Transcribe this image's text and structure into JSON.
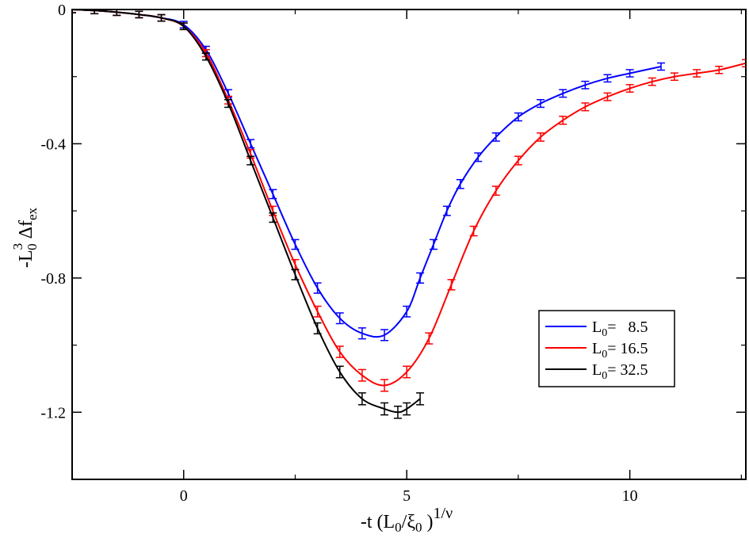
{
  "chart_data": {
    "type": "line",
    "title": "",
    "xlabel": {
      "main": "-t (L",
      "sub1": "0",
      "mid": "/ξ",
      "sub2": "0",
      "close": " )",
      "sup": "1/ν"
    },
    "ylabel": {
      "main": "-L",
      "sup": "3",
      "sub": "0",
      "rest": " Δf",
      "sub2": "ex"
    },
    "xlim": [
      -2.5,
      12.6
    ],
    "ylim": [
      -1.4,
      0.0
    ],
    "x_ticks": [
      0,
      5,
      10
    ],
    "x_tick_labels": [
      "0",
      "5",
      "10"
    ],
    "y_ticks": [
      0,
      -0.4,
      -0.8,
      -1.2
    ],
    "y_tick_labels": [
      "0",
      "-0.4",
      "-0.8",
      "-1.2"
    ],
    "legend_position": "right",
    "series": [
      {
        "name": "8.5",
        "legend_prefix": "L",
        "legend_sub": "0",
        "legend_text": "=   8.5",
        "color": "#0000ff",
        "x": [
          -2.5,
          -2.0,
          -1.5,
          -1.0,
          -0.5,
          0.0,
          0.5,
          1.0,
          1.5,
          2.0,
          2.5,
          3.0,
          3.5,
          4.0,
          4.5,
          5.0,
          5.3,
          5.6,
          5.9,
          6.2,
          6.6,
          7.0,
          7.5,
          8.0,
          8.5,
          9.0,
          9.5,
          10.0,
          10.7
        ],
        "y": [
          0.0,
          -0.003,
          -0.008,
          -0.015,
          -0.025,
          -0.045,
          -0.12,
          -0.25,
          -0.4,
          -0.55,
          -0.7,
          -0.83,
          -0.92,
          -0.965,
          -0.97,
          -0.9,
          -0.8,
          -0.7,
          -0.6,
          -0.52,
          -0.44,
          -0.38,
          -0.32,
          -0.28,
          -0.25,
          -0.225,
          -0.205,
          -0.19,
          -0.17
        ]
      },
      {
        "name": "16.5",
        "legend_prefix": "L",
        "legend_sub": "0",
        "legend_text": "= 16.5",
        "color": "#ff0000",
        "x": [
          -2.5,
          -2.0,
          -1.5,
          -1.0,
          -0.5,
          0.0,
          0.5,
          1.0,
          1.5,
          2.0,
          2.5,
          3.0,
          3.5,
          4.0,
          4.5,
          5.0,
          5.5,
          6.0,
          6.5,
          7.0,
          7.5,
          8.0,
          8.5,
          9.0,
          9.5,
          10.0,
          10.5,
          11.0,
          11.5,
          12.0,
          12.6
        ],
        "y": [
          0.0,
          -0.003,
          -0.008,
          -0.015,
          -0.025,
          -0.05,
          -0.13,
          -0.27,
          -0.43,
          -0.6,
          -0.76,
          -0.9,
          -1.02,
          -1.09,
          -1.12,
          -1.08,
          -0.98,
          -0.82,
          -0.66,
          -0.54,
          -0.45,
          -0.38,
          -0.33,
          -0.29,
          -0.26,
          -0.235,
          -0.215,
          -0.2,
          -0.19,
          -0.18,
          -0.16
        ]
      },
      {
        "name": "32.5",
        "legend_prefix": "L",
        "legend_sub": "0",
        "legend_text": "= 32.5",
        "color": "#000000",
        "x": [
          -2.5,
          -2.0,
          -1.5,
          -1.0,
          -0.5,
          0.0,
          0.5,
          1.0,
          1.5,
          2.0,
          2.5,
          3.0,
          3.5,
          4.0,
          4.5,
          4.8,
          5.0,
          5.3
        ],
        "y": [
          0.0,
          -0.003,
          -0.008,
          -0.015,
          -0.025,
          -0.05,
          -0.14,
          -0.28,
          -0.45,
          -0.62,
          -0.79,
          -0.95,
          -1.08,
          -1.16,
          -1.19,
          -1.2,
          -1.19,
          -1.16
        ]
      }
    ]
  }
}
